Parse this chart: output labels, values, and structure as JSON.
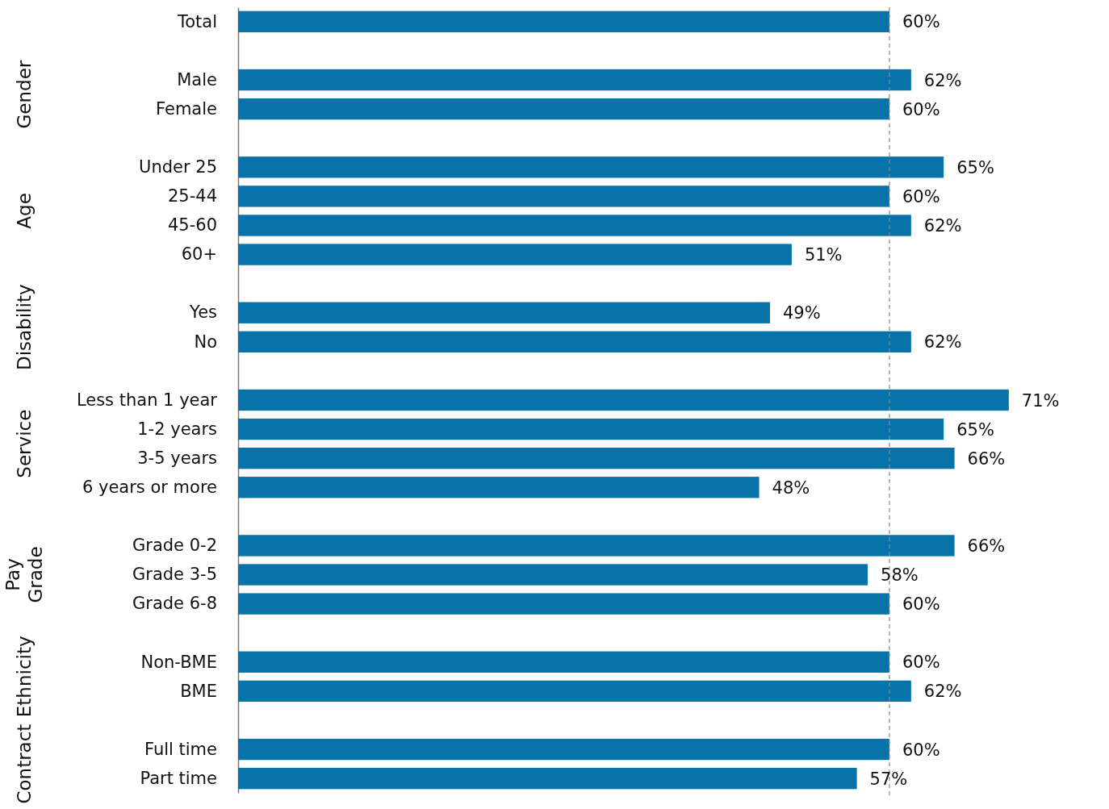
{
  "chart_data": {
    "type": "bar",
    "orientation": "horizontal",
    "categories": [
      "Total",
      null,
      "Male",
      "Female",
      null,
      "Under 25",
      "25-44",
      "45-60",
      "60+",
      null,
      "Yes",
      "No",
      null,
      "Less than 1 year",
      "1-2 years",
      "3-5 years",
      "6 years or more",
      null,
      "Grade 0-2",
      "Grade 3-5",
      "Grade 6-8",
      null,
      "Non-BME",
      "BME",
      null,
      "Full time",
      "Part time"
    ],
    "values": [
      60,
      null,
      62,
      60,
      null,
      65,
      60,
      62,
      51,
      null,
      49,
      62,
      null,
      71,
      65,
      66,
      48,
      null,
      66,
      58,
      60,
      null,
      60,
      62,
      null,
      60,
      57
    ],
    "value_labels": [
      "60%",
      null,
      "62%",
      "60%",
      null,
      "65%",
      "60%",
      "62%",
      "51%",
      null,
      "49%",
      "62%",
      null,
      "71%",
      "65%",
      "66%",
      "48%",
      null,
      "66%",
      "58%",
      "60%",
      null,
      "60%",
      "62%",
      null,
      "60%",
      "57%"
    ],
    "color": "#0873a8",
    "tick_labels": "y",
    "ref_lines": [
      {
        "axis": "x",
        "value": 60,
        "label": null,
        "line_style": "dashed",
        "color": "#888888"
      }
    ],
    "annotations": [
      "Gender",
      "Age",
      "Disability",
      "Service",
      "Pay Grade",
      "Ethnicity",
      "Contract"
    ]
  }
}
